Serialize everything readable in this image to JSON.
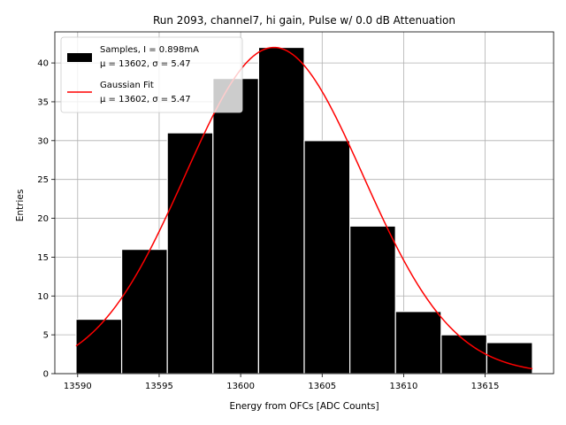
{
  "chart_data": {
    "type": "bar",
    "title": "Run 2093, channel7, hi gain, Pulse w/ 0.0 dB Attenuation",
    "xlabel": "Energy from OFCs [ADC Counts]",
    "ylabel": "Entries",
    "xlim": [
      13588.6,
      13619.2
    ],
    "ylim": [
      0,
      44
    ],
    "xticks": [
      13590,
      13595,
      13600,
      13605,
      13610,
      13615
    ],
    "yticks": [
      0,
      5,
      10,
      15,
      20,
      25,
      30,
      35,
      40
    ],
    "grid": true,
    "bins": [
      {
        "start": 13589.9,
        "end": 13592.7,
        "value": 7
      },
      {
        "start": 13592.7,
        "end": 13595.5,
        "value": 16
      },
      {
        "start": 13595.5,
        "end": 13598.3,
        "value": 31
      },
      {
        "start": 13598.3,
        "end": 13601.1,
        "value": 38
      },
      {
        "start": 13601.1,
        "end": 13603.9,
        "value": 42
      },
      {
        "start": 13603.9,
        "end": 13606.7,
        "value": 30
      },
      {
        "start": 13606.7,
        "end": 13609.5,
        "value": 19
      },
      {
        "start": 13609.5,
        "end": 13612.3,
        "value": 8
      },
      {
        "start": 13612.3,
        "end": 13615.1,
        "value": 5
      },
      {
        "start": 13615.1,
        "end": 13617.9,
        "value": 4
      }
    ],
    "fit": {
      "type": "gaussian",
      "mu": 13602.05,
      "sigma": 5.47,
      "amplitude": 42,
      "range": [
        13589.9,
        13617.9
      ],
      "color": "#ff0000"
    },
    "bar_color": "#000000",
    "legend": {
      "position": "top-left",
      "entries": [
        {
          "line1": "Samples, I = 0.898mA",
          "line2": "μ = 13602, σ = 5.47"
        },
        {
          "line1": "Gaussian Fit",
          "line2": "μ = 13602, σ = 5.47"
        }
      ]
    }
  }
}
